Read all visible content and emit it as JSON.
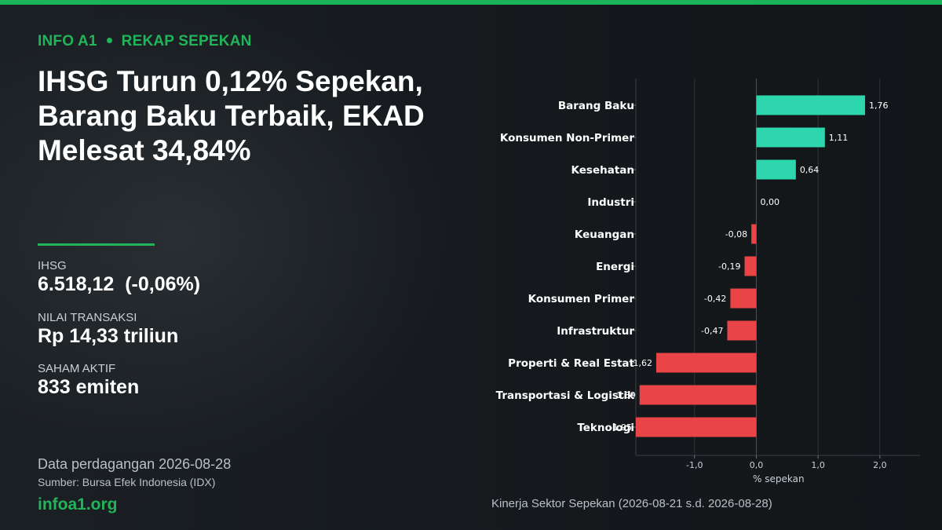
{
  "header": {
    "brand_tag": "INFO A1",
    "section": "REKAP SEPEKAN",
    "headline": "IHSG Turun 0,12% Sepekan, Barang Baku Terbaik, EKAD Melesat 34,84%"
  },
  "stats": [
    {
      "label": "IHSG",
      "value": "6.518,12  (-0,06%)"
    },
    {
      "label": "NILAI TRANSAKSI",
      "value": "Rp 14,33 triliun"
    },
    {
      "label": "SAHAM AKTIF",
      "value": "833 emiten"
    }
  ],
  "footer": {
    "date_text": "Data perdagangan 2026-08-28",
    "source": "Sumber: Bursa Efek Indonesia (IDX)",
    "site": "infoa1.org"
  },
  "colors": {
    "accent": "#21b45a",
    "positive": "#2ed6ad",
    "negative": "#ea4446",
    "background": "#121619"
  },
  "chart_data": {
    "type": "bar",
    "orientation": "horizontal",
    "caption": "Kinerja Sektor Sepekan (2026-08-21 s.d. 2026-08-28)",
    "xlabel": "% sepekan",
    "ylabel": "",
    "xlim": [
      -1.95,
      2.65
    ],
    "xticks": [
      -1.0,
      0.0,
      1.0,
      2.0
    ],
    "xtick_labels": [
      "-1,0",
      "0,0",
      "1,0",
      "2,0"
    ],
    "grid": "vertical",
    "categories": [
      "Barang Baku",
      "Konsumen Non-Primer",
      "Kesehatan",
      "Industri",
      "Keuangan",
      "Energi",
      "Konsumen Primer",
      "Infrastruktur",
      "Properti & Real Estat",
      "Transportasi & Logistik",
      "Teknologi"
    ],
    "values": [
      1.76,
      1.11,
      0.64,
      0.0,
      -0.08,
      -0.19,
      -0.42,
      -0.47,
      -1.62,
      -1.89,
      -1.95
    ],
    "value_labels": [
      "1,76",
      "1,11",
      "0,64",
      "0,00",
      "-0,08",
      "-0,19",
      "-0,42",
      "-0,47",
      "-1,62",
      "-1,89",
      "-1,95"
    ]
  }
}
